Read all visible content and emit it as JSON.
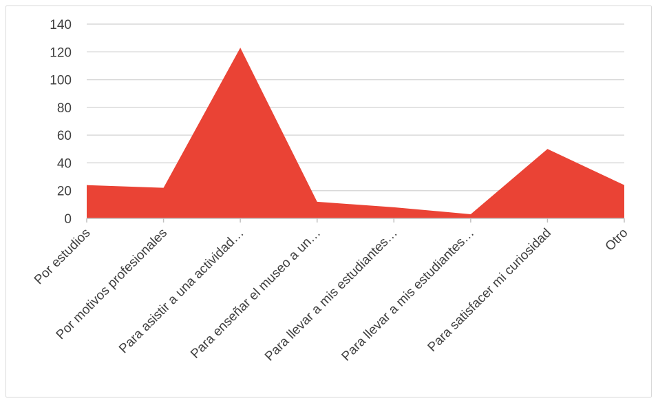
{
  "chart_data": {
    "type": "area",
    "categories": [
      "Por estudios",
      "Por motivos profesionales",
      "Para asistir a una actividad…",
      "Para enseñar el museo a un…",
      "Para llevar a mis estudiantes…",
      "Para llevar a mis estudiantes…",
      "Para satisfacer mi curiosidad",
      "Otro"
    ],
    "series": [
      {
        "values": [
          24,
          22,
          123,
          12,
          8,
          3,
          50,
          24
        ]
      }
    ],
    "ylim": [
      0,
      140
    ],
    "yticks": [
      0,
      20,
      40,
      60,
      80,
      100,
      120,
      140
    ],
    "grid": true,
    "legend": "none",
    "colors": {
      "area": "#ea4335",
      "grid": "#d9d9d9",
      "axis": "#bfbfbf",
      "text": "#404040"
    }
  }
}
